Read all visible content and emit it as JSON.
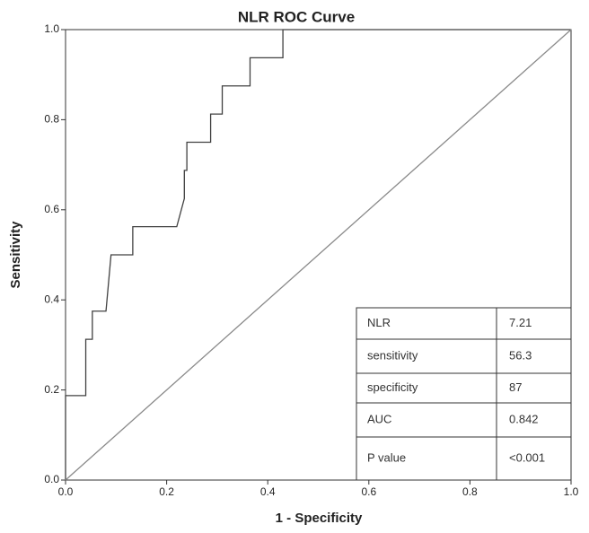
{
  "chart_data": {
    "type": "line",
    "title": "NLR ROC Curve",
    "x_label": "1 - Specificity",
    "y_label": "Sensitivity",
    "xlim": [
      0,
      1
    ],
    "ylim": [
      0,
      1
    ],
    "xticks": [
      {
        "value": 0,
        "label": "0.0"
      },
      0.2,
      0.4,
      0.6,
      0.8,
      {
        "value": 1,
        "label": "1.0"
      }
    ],
    "yticks": [
      {
        "value": 0,
        "label": "0.0"
      },
      0.2,
      0.4,
      0.6,
      0.8,
      {
        "value": 1,
        "label": "1.0"
      }
    ],
    "series": [
      {
        "color": "#404040",
        "x": [
          0,
          0,
          0.04,
          0.04,
          0.053,
          0.053,
          0.08,
          0.09,
          0.133,
          0.133,
          0.22,
          0.235,
          0.235,
          0.24,
          0.24,
          0.287,
          0.287,
          0.31,
          0.31,
          0.365,
          0.365,
          0.43,
          0.43,
          1
        ],
        "values": [
          0,
          0.1875,
          0.1875,
          0.3125,
          0.3125,
          0.375,
          0.375,
          0.5,
          0.5,
          0.5625,
          0.5625,
          0.625,
          0.6875,
          0.6875,
          0.75,
          0.75,
          0.8125,
          0.8125,
          0.875,
          0.875,
          0.9375,
          0.9375,
          1,
          1
        ]
      },
      {
        "color": "#8a8a8a",
        "x": [
          0,
          1
        ],
        "values": [
          0,
          1
        ]
      }
    ],
    "table": [
      [
        "NLR",
        "7.21"
      ],
      [
        "sensitivity",
        "56.3"
      ],
      [
        "specificity",
        "87"
      ],
      [
        "AUC",
        "0.842"
      ],
      [
        "P value",
        "<0.001"
      ]
    ]
  }
}
